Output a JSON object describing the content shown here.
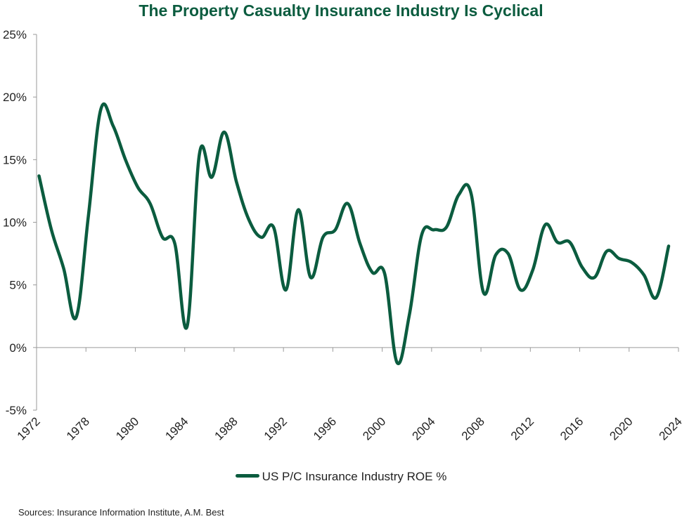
{
  "chart_data": {
    "type": "line",
    "title": "The Property Casualty Insurance Industry Is Cyclical",
    "xlabel": "",
    "ylabel": "",
    "x_tick_labels": [
      "1972",
      "1978",
      "1980",
      "1984",
      "1988",
      "1992",
      "1996",
      "2000",
      "2004",
      "2008",
      "2012",
      "2016",
      "2020",
      "2024"
    ],
    "y_tick_labels": [
      "25%",
      "20%",
      "15%",
      "10%",
      "5%",
      "0%",
      "-5%"
    ],
    "ylim": [
      -5,
      25
    ],
    "xlim": [
      1972,
      2024
    ],
    "grid": false,
    "legend_position": "bottom-center",
    "series": [
      {
        "name": "US P/C Insurance Industry ROE %",
        "color": "#0b5c3f",
        "x": [
          1972,
          1973,
          1974,
          1975,
          1976,
          1977,
          1978,
          1979,
          1980,
          1981,
          1982,
          1983,
          1984,
          1985,
          1986,
          1987,
          1988,
          1989,
          1990,
          1991,
          1992,
          1993,
          1994,
          1995,
          1996,
          1997,
          1998,
          1999,
          2000,
          2001,
          2002,
          2003,
          2004,
          2005,
          2006,
          2007,
          2008,
          2009,
          2010,
          2011,
          2012,
          2013,
          2014,
          2015,
          2016,
          2017,
          2018,
          2019,
          2020,
          2021,
          2022,
          2023
        ],
        "y": [
          13.7,
          9.4,
          6.3,
          2.4,
          10.5,
          19.0,
          17.7,
          15.0,
          12.8,
          11.5,
          8.8,
          8.3,
          1.7,
          15.5,
          13.6,
          17.2,
          13.2,
          10.2,
          8.8,
          9.6,
          4.6,
          11.0,
          5.6,
          8.8,
          9.4,
          11.5,
          8.3,
          6.0,
          5.9,
          -1.2,
          2.6,
          9.0,
          9.4,
          9.6,
          12.2,
          12.3,
          4.4,
          7.4,
          7.5,
          4.6,
          6.2,
          9.8,
          8.4,
          8.4,
          6.4,
          5.6,
          7.7,
          7.1,
          6.8,
          5.8,
          4.0,
          8.1
        ]
      }
    ]
  },
  "legend": {
    "label": "US P/C Insurance Industry ROE %"
  },
  "footer": {
    "source": "Sources:  Insurance Information Institute, A.M. Best"
  }
}
